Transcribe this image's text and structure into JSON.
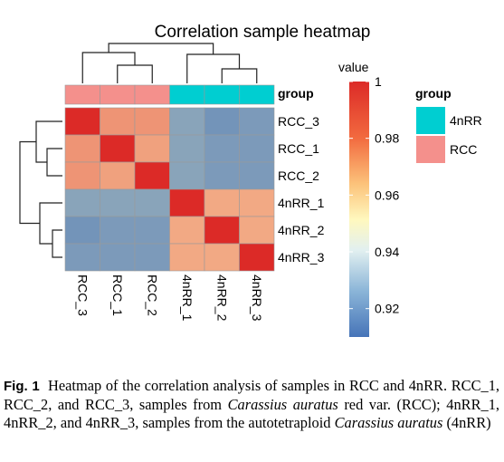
{
  "chart_data": {
    "type": "heatmap",
    "title": "Correlation sample heatmap",
    "rows": [
      "RCC_3",
      "RCC_1",
      "RCC_2",
      "4nRR_1",
      "4nRR_2",
      "4nRR_3"
    ],
    "columns": [
      "RCC_3",
      "RCC_1",
      "RCC_2",
      "4nRR_1",
      "4nRR_2",
      "4nRR_3"
    ],
    "values": [
      [
        1.0,
        0.975,
        0.975,
        0.925,
        0.92,
        0.922
      ],
      [
        0.975,
        1.0,
        0.972,
        0.925,
        0.922,
        0.922
      ],
      [
        0.975,
        0.972,
        1.0,
        0.925,
        0.922,
        0.922
      ],
      [
        0.925,
        0.925,
        0.925,
        1.0,
        0.97,
        0.97
      ],
      [
        0.92,
        0.922,
        0.922,
        0.97,
        1.0,
        0.97
      ],
      [
        0.922,
        0.922,
        0.922,
        0.97,
        0.97,
        1.0
      ]
    ],
    "group_annotation": {
      "label": "group",
      "values": [
        "RCC",
        "RCC",
        "RCC",
        "4nRR",
        "4nRR",
        "4nRR"
      ]
    },
    "colorbar": {
      "title": "value",
      "ticks": [
        "1",
        "0.98",
        "0.96",
        "0.94",
        "0.92"
      ],
      "tick_values": [
        1,
        0.98,
        0.96,
        0.94,
        0.92
      ],
      "range": [
        0.91,
        1.0
      ]
    },
    "legend": {
      "title": "group",
      "entries": [
        {
          "label": "4nRR",
          "color": "#00CED1"
        },
        {
          "label": "RCC",
          "color": "#F4908C"
        }
      ]
    },
    "colors": {
      "low": "#4674B8",
      "mid": "#FFF8BE",
      "high": "#DC2A27"
    }
  },
  "caption": {
    "label": "Fig. 1",
    "seg1": "Heatmap of the correlation analysis of samples in RCC and 4nRR. RCC_1, RCC_2, and RCC_3, samples from ",
    "species1": "Carassius auratus",
    "seg2": " red var. (RCC); 4nRR_1, 4nRR_2, and 4nRR_3, samples from the autotetraploid ",
    "species2": "Carassius auratus",
    "seg3": " (4nRR)"
  }
}
